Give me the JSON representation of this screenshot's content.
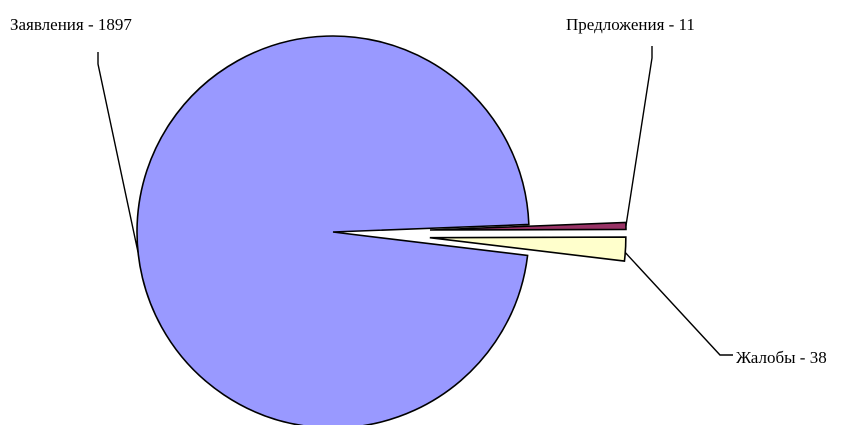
{
  "chart_data": {
    "type": "pie",
    "title": "",
    "categories": [
      "Заявления",
      "Предложения",
      "Жалобы"
    ],
    "values": [
      1897,
      11,
      38
    ],
    "labels": [
      "Заявления - 1897",
      "Предложения - 11",
      "Жалобы - 38"
    ],
    "colors": [
      "#9999ff",
      "#993366",
      "#ffffcc"
    ],
    "exploded": [
      false,
      true,
      true
    ],
    "legend": "none"
  }
}
